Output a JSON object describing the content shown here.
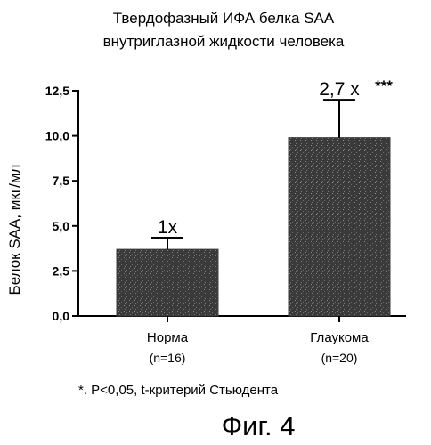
{
  "chart_data": {
    "type": "bar",
    "title": [
      "Твердофазный ИФА белка SAA",
      "внутриглазной жидкости человека"
    ],
    "ylabel": "Белок SAA, мкг/мл",
    "xlabel": "",
    "ylim": [
      0,
      12.5
    ],
    "yticks": [
      0,
      2.5,
      5,
      7.5,
      10,
      12.5
    ],
    "ytick_labels": [
      "0,0",
      "2,5",
      "5,0",
      "7,5",
      "10,0",
      "12,5"
    ],
    "categories": [
      {
        "name": "Норма",
        "n_label": "(n=16)"
      },
      {
        "name": "Глаукома",
        "n_label": "(n=20)"
      }
    ],
    "values": [
      3.7,
      9.9
    ],
    "error_upper": [
      4.35,
      12.0
    ],
    "bar_labels": [
      "1x",
      "2,7 x"
    ],
    "significance": [
      "",
      "***"
    ],
    "footnote": "*. P<0,05, t-критерий Стьюдента",
    "figure_caption": "Фиг. 4",
    "grid": false,
    "legend": "none",
    "bar_color": "#3c3c3c"
  }
}
